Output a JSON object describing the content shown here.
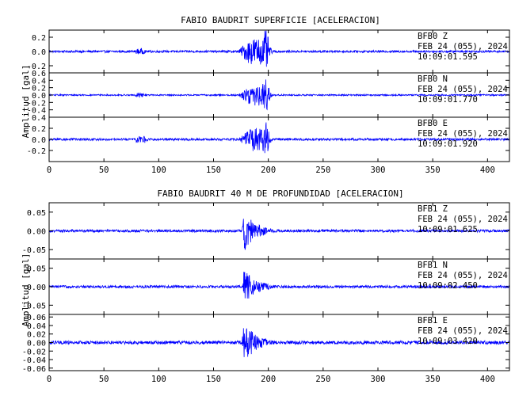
{
  "chart_data": [
    {
      "type": "line",
      "title": "FABIO BAUDRIT SUPERFICIE [ACELERACION]",
      "ylabel": "Amplitud [gal]",
      "xlabel": "",
      "xlim": [
        0,
        420
      ],
      "xticks": [
        0,
        50,
        100,
        150,
        200,
        250,
        300,
        350,
        400
      ],
      "line_color": "#0000ff",
      "series": [
        {
          "name": "BFB0 Z",
          "station": "BFB0",
          "component": "Z",
          "date": "FEB 24 (055), 2024",
          "time": "10:09:01.595",
          "ylim": [
            -0.3,
            0.3
          ],
          "yticks": [
            "0.2",
            "0.0",
            "-0.2"
          ],
          "ytick_values": [
            0.2,
            0.0,
            -0.2
          ],
          "noise": 0.015,
          "bursts": [
            {
              "t0": 76,
              "t1": 90,
              "amp": 0.045
            },
            {
              "t0": 172,
              "t1": 205,
              "amp": 0.2
            },
            {
              "t0": 193,
              "t1": 202,
              "amp": 0.3
            }
          ]
        },
        {
          "name": "BFB0 N",
          "station": "BFB0",
          "component": "N",
          "date": "FEB 24 (055), 2024",
          "time": "10:09:01.770",
          "ylim": [
            -0.6,
            0.6
          ],
          "yticks": [
            "0.6",
            "0.4",
            "0.2",
            "0.0",
            "-0.2",
            "-0.4"
          ],
          "ytick_values": [
            0.6,
            0.4,
            0.2,
            0.0,
            -0.2,
            -0.4
          ],
          "noise": 0.02,
          "bursts": [
            {
              "t0": 76,
              "t1": 90,
              "amp": 0.07
            },
            {
              "t0": 172,
              "t1": 205,
              "amp": 0.3
            },
            {
              "t0": 193,
              "t1": 202,
              "amp": 0.5
            }
          ]
        },
        {
          "name": "BFB0 E",
          "station": "BFB0",
          "component": "E",
          "date": "FEB 24 (055), 2024",
          "time": "10:09:01.920",
          "ylim": [
            -0.4,
            0.4
          ],
          "yticks": [
            "0.4",
            "0.2",
            "0.0",
            "-0.2"
          ],
          "ytick_values": [
            0.4,
            0.2,
            0.0,
            -0.2
          ],
          "noise": 0.02,
          "bursts": [
            {
              "t0": 76,
              "t1": 92,
              "amp": 0.08
            },
            {
              "t0": 172,
              "t1": 205,
              "amp": 0.22
            },
            {
              "t0": 193,
              "t1": 202,
              "amp": 0.32
            }
          ]
        }
      ]
    },
    {
      "type": "line",
      "title": "FABIO BAUDRIT 40 M DE PROFUNDIDAD [ACELERACION]",
      "ylabel": "Amplitud [gal]",
      "xlabel": "",
      "xlim": [
        0,
        420
      ],
      "xticks": [
        0,
        50,
        100,
        150,
        200,
        250,
        300,
        350,
        400
      ],
      "line_color": "#0000ff",
      "series": [
        {
          "name": "BFB1 Z",
          "station": "BFB1",
          "component": "Z",
          "date": "FEB 24 (055), 2024",
          "time": "10:09:01.625",
          "ylim": [
            -0.075,
            0.075
          ],
          "yticks": [
            "0.05",
            "0.00",
            "-0.05"
          ],
          "ytick_values": [
            0.05,
            0.0,
            -0.05
          ],
          "noise": 0.0035,
          "bursts": [
            {
              "t0": 176,
              "t1": 215,
              "amp": 0.065,
              "decay": true
            }
          ]
        },
        {
          "name": "BFB1 N",
          "station": "BFB1",
          "component": "N",
          "date": "FEB 24 (055), 2024",
          "time": "10:09:02.450",
          "ylim": [
            -0.075,
            0.075
          ],
          "yticks": [
            "0.05",
            "0.00",
            "-0.05"
          ],
          "ytick_values": [
            0.05,
            0.0,
            -0.05
          ],
          "noise": 0.0035,
          "bursts": [
            {
              "t0": 176,
              "t1": 215,
              "amp": 0.06,
              "decay": true
            }
          ]
        },
        {
          "name": "BFB1 E",
          "station": "BFB1",
          "component": "E",
          "date": "FEB 24 (055), 2024",
          "time": "10:09:03.420",
          "ylim": [
            -0.066,
            0.066
          ],
          "yticks": [
            "0.06",
            "0.04",
            "0.02",
            "0.00",
            "-0.02",
            "-0.04",
            "-0.06"
          ],
          "ytick_values": [
            0.06,
            0.04,
            0.02,
            0.0,
            -0.02,
            -0.04,
            -0.06
          ],
          "noise": 0.004,
          "bursts": [
            {
              "t0": 176,
              "t1": 215,
              "amp": 0.06,
              "decay": true
            }
          ]
        }
      ]
    }
  ]
}
